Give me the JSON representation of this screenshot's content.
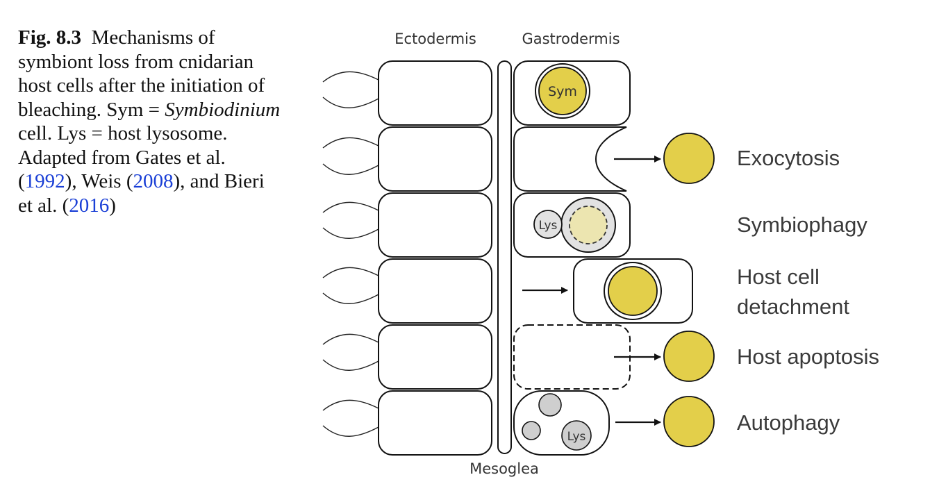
{
  "caption": {
    "figure_label": "Fig. 8.3",
    "text_1": "Mechanisms of symbiont loss from cnidarian host cells after the initiation of bleaching. Sym =",
    "italic_term": "Symbiodinium",
    "text_2": "cell. Lys = host lysosome. Adapted from Gates et al. (",
    "ref_1": "1992",
    "text_3": "), Weis (",
    "ref_2": "2008",
    "text_4": "), and Bieri et al. (",
    "ref_3": "2016",
    "text_5": ")"
  },
  "diagram": {
    "layer_labels": {
      "ectodermis": "Ectodermis",
      "gastrodermis": "Gastrodermis",
      "mesoglea": "Mesoglea"
    },
    "cell_labels": {
      "sym": "Sym",
      "lys_symbiophagy": "Lys",
      "lys_autophagy": "Lys"
    },
    "mechanisms": [
      "Exocytosis",
      "Symbiophagy",
      "Host cell",
      "detachment",
      "Host apoptosis",
      "Autophagy"
    ]
  },
  "colors": {
    "symbiont_yellow": "#e3cf4a",
    "degraded_symbiont": "#ece5b0",
    "vacuole_grey": "#e2e2e2",
    "lysosome_grey": "#cfcfcf",
    "outline": "#111111",
    "link_blue": "#1a3fd6"
  }
}
